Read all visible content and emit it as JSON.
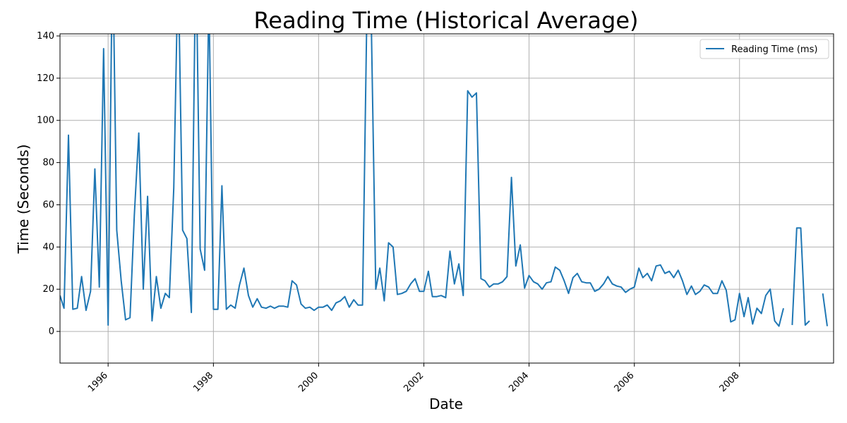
{
  "chart_data": {
    "type": "line",
    "title": "Reading Time (Historical Average)",
    "xlabel": "Date",
    "ylabel": "Time (Seconds)",
    "x_axis_type": "date",
    "xlim": [
      "1995-02-01",
      "2009-10-15"
    ],
    "ylim": [
      -15,
      141
    ],
    "x_ticks": [
      "1996-01-01",
      "1998-01-01",
      "2000-01-01",
      "2002-01-01",
      "2004-01-01",
      "2006-01-01",
      "2008-01-01"
    ],
    "x_tick_labels": [
      "1996",
      "1998",
      "2000",
      "2002",
      "2004",
      "2006",
      "2008"
    ],
    "x_tick_rotation": 45,
    "y_ticks": [
      0,
      20,
      40,
      60,
      80,
      100,
      120,
      140
    ],
    "grid": true,
    "legend": {
      "position": "top-right",
      "entries": [
        "Reading Time (ms)"
      ]
    },
    "series": [
      {
        "name": "Reading Time (ms)",
        "color": "#1f77b4",
        "x": [
          "1995-02",
          "1995-03",
          "1995-04",
          "1995-05",
          "1995-06",
          "1995-07",
          "1995-08",
          "1995-09",
          "1995-10",
          "1995-11",
          "1995-12",
          "1996-01",
          "1996-02",
          "1996-03",
          "1996-04",
          "1996-05",
          "1996-06",
          "1996-07",
          "1996-08",
          "1996-09",
          "1996-10",
          "1996-11",
          "1996-12",
          "1997-01",
          "1997-02",
          "1997-03",
          "1997-04",
          "1997-05",
          "1997-06",
          "1997-07",
          "1997-08",
          "1997-09",
          "1997-10",
          "1997-11",
          "1997-12",
          "1998-01",
          "1998-02",
          "1998-03",
          "1998-04",
          "1998-05",
          "1998-06",
          "1998-07",
          "1998-08",
          "1998-09",
          "1998-10",
          "1998-11",
          "1998-12",
          "1999-01",
          "1999-02",
          "1999-03",
          "1999-04",
          "1999-05",
          "1999-06",
          "1999-07",
          "1999-08",
          "1999-09",
          "1999-10",
          "1999-11",
          "1999-12",
          "2000-01",
          "2000-02",
          "2000-03",
          "2000-04",
          "2000-05",
          "2000-06",
          "2000-07",
          "2000-08",
          "2000-09",
          "2000-10",
          "2000-11",
          "2000-12",
          "2001-01",
          "2001-02",
          "2001-03",
          "2001-04",
          "2001-05",
          "2001-06",
          "2001-07",
          "2001-08",
          "2001-09",
          "2001-10",
          "2001-11",
          "2001-12",
          "2002-01",
          "2002-02",
          "2002-03",
          "2002-04",
          "2002-05",
          "2002-06",
          "2002-07",
          "2002-08",
          "2002-09",
          "2002-10",
          "2002-11",
          "2002-12",
          "2003-01",
          "2003-02",
          "2003-03",
          "2003-04",
          "2003-05",
          "2003-06",
          "2003-07",
          "2003-08",
          "2003-09",
          "2003-10",
          "2003-11",
          "2003-12",
          "2004-01",
          "2004-02",
          "2004-03",
          "2004-04",
          "2004-05",
          "2004-06",
          "2004-07",
          "2004-08",
          "2004-09",
          "2004-10",
          "2004-11",
          "2004-12",
          "2005-01",
          "2005-02",
          "2005-03",
          "2005-04",
          "2005-05",
          "2005-06",
          "2005-07",
          "2005-08",
          "2005-09",
          "2005-10",
          "2005-11",
          "2005-12",
          "2006-01",
          "2006-02",
          "2006-03",
          "2006-04",
          "2006-05",
          "2006-06",
          "2006-07",
          "2006-08",
          "2006-09",
          "2006-10",
          "2006-11",
          "2006-12",
          "2007-01",
          "2007-02",
          "2007-03",
          "2007-04",
          "2007-05",
          "2007-06",
          "2007-07",
          "2007-08",
          "2007-09",
          "2007-10",
          "2007-11",
          "2007-12",
          "2008-01",
          "2008-02",
          "2008-03",
          "2008-04",
          "2008-05",
          "2008-06",
          "2008-07",
          "2008-08",
          "2008-09",
          "2008-10",
          "2008-11",
          "2008-12",
          "2009-01",
          "2009-02",
          "2009-03",
          "2009-04",
          "2009-05",
          "2009-06",
          "2009-07",
          "2009-08",
          "2009-09"
        ],
        "y": [
          17,
          11,
          93,
          10.5,
          11,
          26,
          10,
          19,
          77,
          21,
          134,
          3,
          185,
          48,
          24,
          5.5,
          6.5,
          55,
          94,
          20,
          64,
          5,
          26,
          11,
          18,
          16,
          68,
          175,
          48,
          44,
          9,
          185,
          39,
          29,
          160,
          10.5,
          10.5,
          69,
          10.5,
          12.5,
          11,
          22,
          30,
          17,
          11.5,
          15.5,
          11.5,
          11,
          12,
          11,
          12,
          12,
          11.5,
          24,
          22,
          13,
          11,
          11.5,
          10,
          11.5,
          11.5,
          12.5,
          10,
          13.5,
          14.5,
          16.5,
          11.5,
          15,
          12.5,
          12.5,
          150,
          145,
          20,
          30,
          14.5,
          42,
          40,
          17.5,
          18,
          19,
          22.5,
          25,
          19,
          19,
          28.5,
          16.5,
          16.5,
          17,
          16,
          38,
          22.5,
          32,
          17,
          114,
          111,
          113,
          25,
          24,
          21,
          22.5,
          22.5,
          23.5,
          26,
          73,
          31,
          41,
          20.5,
          26.5,
          23.5,
          22.5,
          20,
          23,
          23.5,
          30.5,
          29,
          24,
          18,
          25.5,
          27.5,
          23.5,
          23,
          23,
          19,
          20,
          22.5,
          26,
          22.5,
          21.5,
          21,
          18.5,
          20,
          21,
          30,
          25.5,
          27.5,
          24,
          31,
          31.5,
          27.5,
          28.5,
          25.5,
          29,
          24,
          17.5,
          21.5,
          17.5,
          19,
          22,
          21,
          18,
          18,
          24,
          19.5,
          4.5,
          5.5,
          18,
          7,
          16,
          3.5,
          11,
          8.5,
          17,
          20,
          5,
          2.5,
          11,
          null,
          3,
          49,
          49,
          3,
          5,
          null,
          null,
          18,
          2.5
        ]
      }
    ]
  }
}
